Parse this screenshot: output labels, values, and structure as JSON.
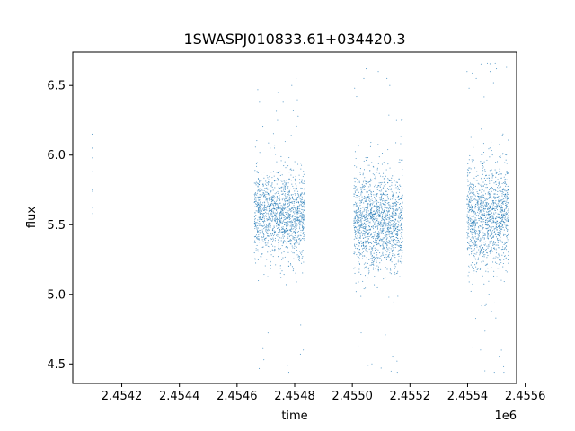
{
  "chart_data": {
    "type": "scatter",
    "title": "1SWASPJ010833.61+034420.3",
    "xlabel": "time",
    "ylabel": "flux",
    "x_offset_label": "1e6",
    "xlim": [
      2454030,
      2455570
    ],
    "ylim": [
      4.36,
      6.74
    ],
    "grid": false,
    "legend": "none",
    "x_ticks": [
      {
        "value": 2454200,
        "label": "2.4542"
      },
      {
        "value": 2454400,
        "label": "2.4544"
      },
      {
        "value": 2454600,
        "label": "2.4546"
      },
      {
        "value": 2454800,
        "label": "2.4548"
      },
      {
        "value": 2455000,
        "label": "2.4550"
      },
      {
        "value": 2455200,
        "label": "2.4552"
      },
      {
        "value": 2455400,
        "label": "2.4554"
      },
      {
        "value": 2455600,
        "label": "2.4556"
      }
    ],
    "y_ticks": [
      {
        "value": 4.5,
        "label": "4.5"
      },
      {
        "value": 5.0,
        "label": "5.0"
      },
      {
        "value": 5.5,
        "label": "5.5"
      },
      {
        "value": 6.0,
        "label": "6.0"
      },
      {
        "value": 6.5,
        "label": "6.5"
      }
    ],
    "series": [
      {
        "color": "#1f77b4",
        "marker_opacity": 0.75,
        "points": [
          [
            2454097,
            6.15
          ],
          [
            2454097,
            6.05
          ],
          [
            2454098,
            5.98
          ],
          [
            2454098,
            5.88
          ],
          [
            2454098,
            5.75
          ],
          [
            2454098,
            5.74
          ],
          [
            2454099,
            5.62
          ],
          [
            2454099,
            5.58
          ],
          [
            2454672,
            6.47
          ],
          [
            2454678,
            6.38
          ],
          [
            2454690,
            4.61
          ],
          [
            2454693,
            4.53
          ],
          [
            2454715,
            6.05
          ],
          [
            2454730,
            6.05
          ],
          [
            2454742,
            6.45
          ],
          [
            2454760,
            6.38
          ],
          [
            2454775,
            4.49
          ],
          [
            2454790,
            6.5
          ],
          [
            2454805,
            6.55
          ],
          [
            2454812,
            6.28
          ],
          [
            2454820,
            4.57
          ],
          [
            2454830,
            4.6
          ],
          [
            2455008,
            6.48
          ],
          [
            2455015,
            6.42
          ],
          [
            2455020,
            4.63
          ],
          [
            2455040,
            6.55
          ],
          [
            2455048,
            6.62
          ],
          [
            2455055,
            4.49
          ],
          [
            2455068,
            4.5
          ],
          [
            2455090,
            6.6
          ],
          [
            2455100,
            4.47
          ],
          [
            2455120,
            6.55
          ],
          [
            2455130,
            6.5
          ],
          [
            2455140,
            4.55
          ],
          [
            2455155,
            4.52
          ],
          [
            2455170,
            6.25
          ],
          [
            2455398,
            6.6
          ],
          [
            2455405,
            6.48
          ],
          [
            2455418,
            4.62
          ],
          [
            2455430,
            6.55
          ],
          [
            2455445,
            4.6
          ],
          [
            2455460,
            4.45
          ],
          [
            2455478,
            6.6
          ],
          [
            2455490,
            6.52
          ],
          [
            2455500,
            6.62
          ],
          [
            2455510,
            4.55
          ],
          [
            2455525,
            4.48
          ],
          [
            2455535,
            6.63
          ]
        ],
        "clusters": [
          {
            "x_start": 2454660,
            "x_end": 2454835,
            "flux_center": 5.57,
            "flux_spread": 0.15,
            "count": 1400
          },
          {
            "x_start": 2455005,
            "x_end": 2455175,
            "flux_center": 5.52,
            "flux_spread": 0.17,
            "count": 1500
          },
          {
            "x_start": 2455398,
            "x_end": 2455542,
            "flux_center": 5.55,
            "flux_spread": 0.18,
            "count": 1300
          }
        ]
      }
    ]
  }
}
